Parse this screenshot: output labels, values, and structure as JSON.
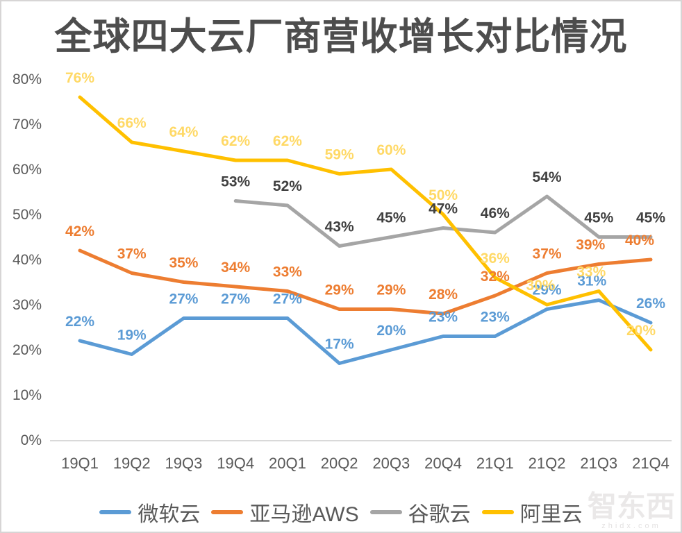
{
  "title": "全球四大云厂商营收增长对比情况",
  "watermark": {
    "text": "智东西",
    "sub": "zhidx.com"
  },
  "chart_data": {
    "type": "line",
    "title": "全球四大云厂商营收增长对比情况",
    "categories": [
      "19Q1",
      "19Q2",
      "19Q3",
      "19Q4",
      "20Q1",
      "20Q2",
      "20Q3",
      "20Q4",
      "21Q1",
      "21Q2",
      "21Q3",
      "21Q4"
    ],
    "series": [
      {
        "id": "microsoft-cloud",
        "name": "微软云",
        "color": "#5B9BD5",
        "label_color": "#5B9BD5",
        "values": [
          22,
          19,
          27,
          27,
          27,
          17,
          20,
          23,
          23,
          29,
          31,
          26
        ]
      },
      {
        "id": "amazon-aws",
        "name": "亚马逊AWS",
        "color": "#ED7D31",
        "label_color": "#ED7D31",
        "values": [
          42,
          37,
          35,
          34,
          33,
          29,
          29,
          28,
          32,
          37,
          39,
          40
        ]
      },
      {
        "id": "google-cloud",
        "name": "谷歌云",
        "color": "#A5A5A5",
        "label_color": "#404040",
        "values": [
          null,
          null,
          null,
          53,
          52,
          43,
          45,
          47,
          46,
          54,
          45,
          45
        ]
      },
      {
        "id": "alibaba-cloud",
        "name": "阿里云",
        "color": "#FFC000",
        "label_color": "#FFD966",
        "values": [
          76,
          66,
          64,
          62,
          62,
          59,
          60,
          50,
          36,
          30,
          33,
          20
        ]
      }
    ],
    "xlabel": "",
    "ylabel": "",
    "ylim": [
      0,
      80
    ],
    "yticks": [
      "0%",
      "10%",
      "20%",
      "30%",
      "40%",
      "50%",
      "60%",
      "70%",
      "80%"
    ],
    "grid": false,
    "legend_position": "bottom",
    "data_labels": true,
    "label_suffix": "%",
    "axis_text_color": "#595959",
    "axis_line_color": "#D9D9D9"
  }
}
